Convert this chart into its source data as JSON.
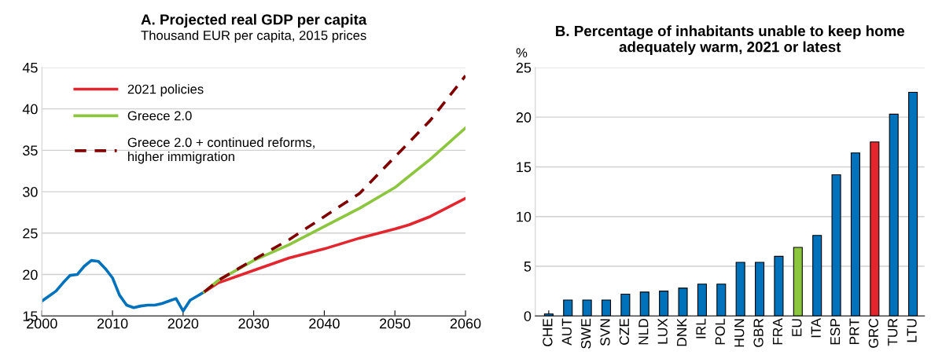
{
  "chart_data": [
    {
      "type": "line",
      "title": "A. Projected real GDP per capita",
      "subtitle": "Thousand EUR per capita, 2015 prices",
      "xlim": [
        2000,
        2060
      ],
      "xticks": [
        2000,
        2010,
        2020,
        2030,
        2040,
        2050,
        2060
      ],
      "ylim": [
        15,
        45
      ],
      "yticks": [
        15,
        20,
        25,
        30,
        35,
        40,
        45
      ],
      "grid": "y",
      "legend": "top left",
      "series": [
        {
          "color": "#0072bc",
          "x": [
            2000,
            2001,
            2002,
            2003,
            2004,
            2005,
            2006,
            2007,
            2008,
            2009,
            2010,
            2011,
            2012,
            2013,
            2014,
            2015,
            2016,
            2017,
            2018,
            2019,
            2020,
            2021,
            2022,
            2023
          ],
          "values": [
            16.8,
            17.4,
            18.0,
            19.0,
            19.9,
            20.0,
            21.0,
            21.7,
            21.6,
            20.7,
            19.6,
            17.5,
            16.3,
            16.0,
            16.2,
            16.3,
            16.3,
            16.5,
            16.8,
            17.1,
            15.6,
            16.9,
            17.4,
            17.9
          ]
        },
        {
          "name": "2021 policies",
          "color": "#e3262e",
          "x": [
            2023,
            2025,
            2030,
            2035,
            2040,
            2045,
            2050,
            2052,
            2055,
            2060
          ],
          "values": [
            17.9,
            19.0,
            20.5,
            22.0,
            23.1,
            24.4,
            25.5,
            26.0,
            27.0,
            29.2
          ]
        },
        {
          "name": "Greece 2.0",
          "color": "#8cc63e",
          "x": [
            2023,
            2025,
            2030,
            2035,
            2040,
            2045,
            2050,
            2055,
            2060
          ],
          "values": [
            17.9,
            19.3,
            21.7,
            23.6,
            25.8,
            28.0,
            30.5,
            33.9,
            37.7
          ]
        },
        {
          "name": "Greece 2.0 + continued reforms,\nhigher immigration",
          "color": "#800000",
          "line_style": "dashed",
          "x": [
            2023,
            2025,
            2030,
            2035,
            2040,
            2045,
            2050,
            2055,
            2060
          ],
          "values": [
            17.9,
            19.3,
            21.8,
            24.2,
            27.0,
            29.8,
            34.2,
            38.6,
            44.0
          ]
        }
      ]
    },
    {
      "type": "bar",
      "title": "B. Percentage of inhabitants unable to keep home\nadequately warm, 2021 or latest",
      "ylabel": "%",
      "categories": [
        "CHE",
        "AUT",
        "SWE",
        "SVN",
        "CZE",
        "NLD",
        "LUX",
        "DNK",
        "IRL",
        "POL",
        "HUN",
        "GBR",
        "FRA",
        "EU",
        "ITA",
        "ESP",
        "PRT",
        "GRC",
        "TUR",
        "LTU"
      ],
      "values": [
        0.2,
        1.6,
        1.6,
        1.6,
        2.2,
        2.4,
        2.5,
        2.8,
        3.2,
        3.2,
        5.4,
        5.4,
        6.0,
        6.9,
        8.1,
        14.2,
        16.4,
        17.5,
        20.3,
        22.5
      ],
      "colors": [
        "#0072bc",
        "#0072bc",
        "#0072bc",
        "#0072bc",
        "#0072bc",
        "#0072bc",
        "#0072bc",
        "#0072bc",
        "#0072bc",
        "#0072bc",
        "#0072bc",
        "#0072bc",
        "#0072bc",
        "#8cc63e",
        "#0072bc",
        "#0072bc",
        "#0072bc",
        "#e3262e",
        "#0072bc",
        "#0072bc"
      ],
      "ylim": [
        0,
        25
      ],
      "yticks": [
        0,
        5,
        10,
        15,
        20,
        25
      ],
      "grid": "y"
    }
  ]
}
